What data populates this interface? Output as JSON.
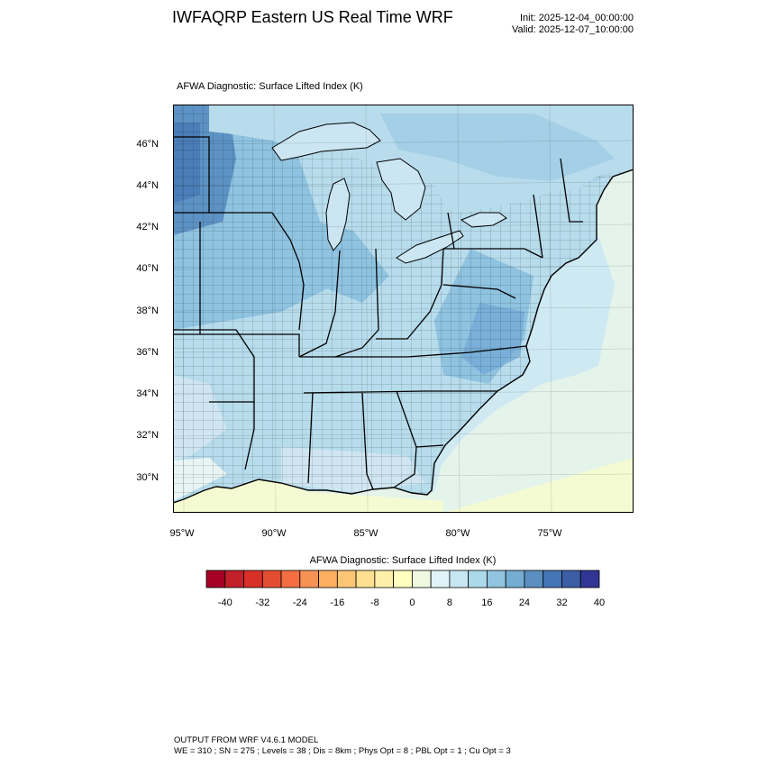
{
  "title": "IWFAQRP Eastern US Real Time WRF",
  "init_label": "Init: 2025-12-04_00:00:00",
  "valid_label": "Valid: 2025-12-07_10:00:00",
  "map": {
    "field_label": "AFWA Diagnostic: Surface Lifted Index   (K)",
    "lat_ticks": [
      "46°N",
      "44°N",
      "42°N",
      "40°N",
      "38°N",
      "36°N",
      "34°N",
      "32°N",
      "30°N"
    ],
    "lon_ticks": [
      "95°W",
      "90°W",
      "85°W",
      "80°W",
      "75°W"
    ],
    "colors": {
      "ocean_warm": "#f4fbd2",
      "ocean_cool": "#e4f4ea",
      "near_zero": "#d6eef5",
      "light_blue": "#b7dcec",
      "mid_blue": "#8fc3e0",
      "deep_blue": "#5d92c4",
      "darkest_blue": "#3f6fb0"
    }
  },
  "colorbar": {
    "title": "AFWA Diagnostic: Surface Lifted Index  (K)",
    "tick_labels": [
      "-40",
      "-32",
      "-24",
      "-16",
      "-8",
      "0",
      "8",
      "16",
      "24",
      "32",
      "40"
    ],
    "colors": [
      "#a50026",
      "#c2202b",
      "#d73027",
      "#e34e33",
      "#f46d43",
      "#f89254",
      "#fdae61",
      "#fdc675",
      "#fee090",
      "#fdefa8",
      "#ffffbf",
      "#f0f9e0",
      "#e0f3f8",
      "#c6e6f1",
      "#abd9e9",
      "#93c4df",
      "#74add1",
      "#5b8fc2",
      "#4575b4",
      "#3b5ea5",
      "#313695"
    ]
  },
  "footer": {
    "line1": "OUTPUT FROM WRF V4.6.1 MODEL",
    "line2": "WE = 310 ; SN = 275 ; Levels = 38 ; Dis = 8km ; Phys Opt = 8 ; PBL Opt = 1 ; Cu Opt = 3"
  }
}
